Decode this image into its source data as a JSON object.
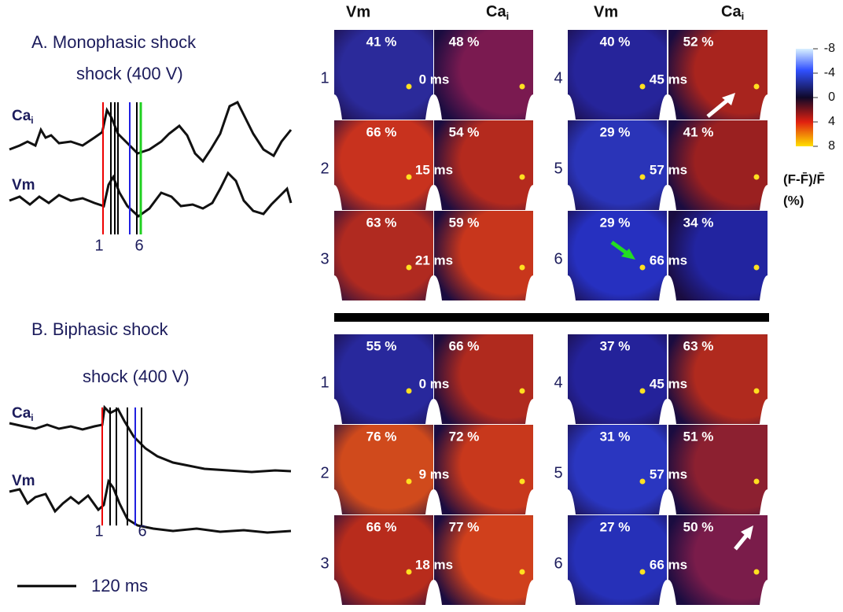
{
  "panels": [
    {
      "title": "A. Monophasic shock",
      "subtitle": "shock (400 V)",
      "ca_label": "Ca",
      "ca_sub": "i",
      "vm_label": "Vm",
      "marker_first": "1",
      "marker_last": "6",
      "rows": [
        {
          "row": "1",
          "vm": "41 %",
          "ca": "48 %",
          "time": "0 ms",
          "vm_color": "#2b2a9a",
          "ca_color": "#7a1a50"
        },
        {
          "row": "2",
          "vm": "66 %",
          "ca": "54 %",
          "time": "15 ms",
          "vm_color": "#c8321e",
          "ca_color": "#b42a1e"
        },
        {
          "row": "3",
          "vm": "63 %",
          "ca": "59 %",
          "time": "21 ms",
          "vm_color": "#b02a20",
          "ca_color": "#c8361c"
        },
        {
          "row": "4",
          "vm": "40 %",
          "ca": "52 %",
          "time": "45 ms",
          "vm_color": "#26249a",
          "ca_color": "#a8241e"
        },
        {
          "row": "5",
          "vm": "29 %",
          "ca": "41 %",
          "time": "57 ms",
          "vm_color": "#2a34b8",
          "ca_color": "#9a2020"
        },
        {
          "row": "6",
          "vm": "29 %",
          "ca": "34 %",
          "time": "66 ms",
          "vm_color": "#2630c0",
          "ca_color": "#2224a0"
        }
      ]
    },
    {
      "title": "B. Biphasic shock",
      "subtitle": "shock (400 V)",
      "ca_label": "Ca",
      "ca_sub": "i",
      "vm_label": "Vm",
      "marker_first": "1",
      "marker_last": "6",
      "rows": [
        {
          "row": "1",
          "vm": "55 %",
          "ca": "66 %",
          "time": "0 ms",
          "vm_color": "#28289c",
          "ca_color": "#b02a1e"
        },
        {
          "row": "2",
          "vm": "76 %",
          "ca": "72 %",
          "time": "9 ms",
          "vm_color": "#d04a1c",
          "ca_color": "#c8381c"
        },
        {
          "row": "3",
          "vm": "66 %",
          "ca": "77 %",
          "time": "18 ms",
          "vm_color": "#b82c1c",
          "ca_color": "#d0401c"
        },
        {
          "row": "4",
          "vm": "37 %",
          "ca": "63 %",
          "time": "45 ms",
          "vm_color": "#24229a",
          "ca_color": "#b02a1e"
        },
        {
          "row": "5",
          "vm": "31 %",
          "ca": "51 %",
          "time": "57 ms",
          "vm_color": "#2a36c0",
          "ca_color": "#8c2030"
        },
        {
          "row": "6",
          "vm": "27 %",
          "ca": "50 %",
          "time": "66 ms",
          "vm_color": "#2630b8",
          "ca_color": "#7a1c4a"
        }
      ]
    }
  ],
  "headers": {
    "vm": "Vm",
    "ca": "Ca",
    "ca_sub": "i"
  },
  "colorbar": {
    "ylim": [
      -8,
      8
    ],
    "ticks": [
      -8,
      -4,
      0,
      4,
      8
    ],
    "label": "(F-F̄)/F̄",
    "unit": "(%)"
  },
  "scale_bar": "120 ms"
}
